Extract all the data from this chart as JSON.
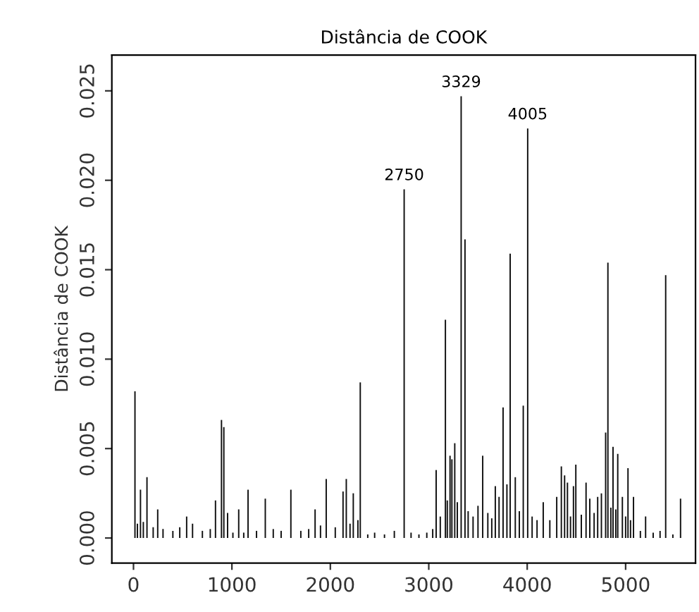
{
  "chart_data": {
    "type": "bar",
    "title": "Distância de COOK",
    "ylabel": "Distância de COOK",
    "x": [
      15,
      40,
      71,
      100,
      137,
      200,
      246,
      300,
      400,
      470,
      540,
      600,
      700,
      780,
      833,
      894,
      918,
      956,
      1010,
      1069,
      1120,
      1164,
      1250,
      1339,
      1420,
      1500,
      1599,
      1700,
      1780,
      1845,
      1900,
      1958,
      2050,
      2129,
      2162,
      2200,
      2233,
      2280,
      2304,
      2380,
      2450,
      2550,
      2650,
      2750,
      2820,
      2900,
      2980,
      3040,
      3075,
      3117,
      3169,
      3188,
      3216,
      3235,
      3264,
      3290,
      3329,
      3368,
      3400,
      3450,
      3500,
      3548,
      3600,
      3640,
      3676,
      3714,
      3755,
      3794,
      3827,
      3879,
      3920,
      3960,
      4005,
      4050,
      4100,
      4163,
      4230,
      4300,
      4347,
      4380,
      4409,
      4440,
      4470,
      4494,
      4550,
      4598,
      4636,
      4680,
      4716,
      4754,
      4797,
      4820,
      4850,
      4872,
      4900,
      4920,
      4967,
      5000,
      5024,
      5050,
      5080,
      5150,
      5203,
      5280,
      5350,
      5407,
      5480,
      5558
    ],
    "values": [
      0.0082,
      0.0008,
      0.0027,
      0.0009,
      0.0034,
      0.0006,
      0.0016,
      0.0005,
      0.0004,
      0.0006,
      0.0012,
      0.0008,
      0.0004,
      0.0005,
      0.0021,
      0.0066,
      0.0062,
      0.0014,
      0.0003,
      0.0016,
      0.0003,
      0.0027,
      0.0004,
      0.0022,
      0.0005,
      0.0004,
      0.0027,
      0.0004,
      0.0005,
      0.0016,
      0.0007,
      0.0033,
      0.0006,
      0.0026,
      0.0033,
      0.0008,
      0.0025,
      0.001,
      0.0087,
      0.0002,
      0.0003,
      0.0002,
      0.0004,
      0.0195,
      0.0003,
      0.0002,
      0.0003,
      0.0005,
      0.0038,
      0.0012,
      0.0122,
      0.0021,
      0.0046,
      0.0044,
      0.0053,
      0.002,
      0.0247,
      0.0167,
      0.0015,
      0.0012,
      0.0018,
      0.0046,
      0.0014,
      0.0011,
      0.0029,
      0.0023,
      0.0073,
      0.003,
      0.0159,
      0.0034,
      0.0015,
      0.0074,
      0.0229,
      0.0012,
      0.001,
      0.002,
      0.001,
      0.0023,
      0.004,
      0.0035,
      0.0031,
      0.0012,
      0.0029,
      0.0041,
      0.0013,
      0.0031,
      0.0022,
      0.0014,
      0.0023,
      0.0025,
      0.0059,
      0.0154,
      0.0017,
      0.0051,
      0.0016,
      0.0047,
      0.0023,
      0.0012,
      0.0039,
      0.001,
      0.0023,
      0.0004,
      0.0012,
      0.0003,
      0.0004,
      0.0147,
      0.0002,
      0.0022
    ],
    "color": "#111111",
    "xlim": [
      -220,
      5710
    ],
    "ylim": [
      -0.0014,
      0.027
    ],
    "xticks": [
      0,
      1000,
      2000,
      3000,
      4000,
      5000
    ],
    "yticks": [
      {
        "value": 0,
        "label": "0.000"
      },
      {
        "value": 0.005,
        "label": "0.005"
      },
      {
        "value": 0.01,
        "label": "0.010"
      },
      {
        "value": 0.015,
        "label": "0.015"
      },
      {
        "value": 0.02,
        "label": "0.020"
      },
      {
        "value": 0.025,
        "label": "0.025"
      }
    ],
    "annotations": [
      {
        "text": "2750",
        "x": 2750,
        "y": 0.0195
      },
      {
        "text": "3329",
        "x": 3329,
        "y": 0.0247
      },
      {
        "text": "4005",
        "x": 4005,
        "y": 0.0229
      }
    ],
    "grid": false,
    "legend": false
  }
}
